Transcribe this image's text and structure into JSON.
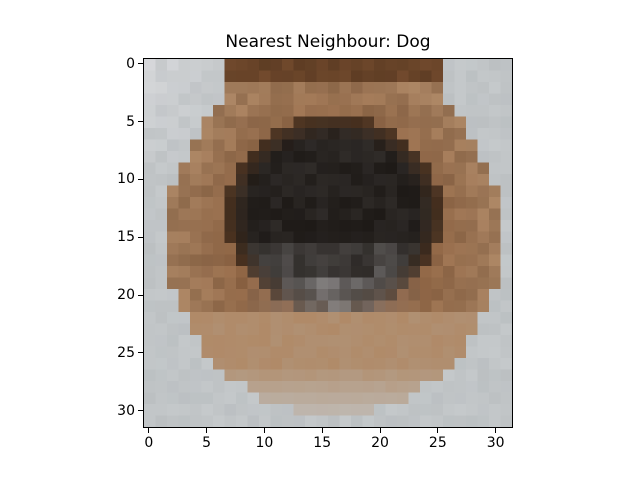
{
  "figure": {
    "title": "Nearest Neighbour: Dog",
    "image_grid": {
      "rows": 32,
      "cols": 32
    },
    "image_description_palette": {
      "background": "#c5c9cb",
      "fur_light": "#b08a68",
      "fur_mid": "#8a5a38",
      "fur_dark": "#5a3a22",
      "face_dark": "#1e1a17",
      "face_mid": "#3a3634",
      "muzzle_grey": "#8d8a8a"
    },
    "x_axis": {
      "ticks": [
        "0",
        "5",
        "10",
        "15",
        "20",
        "25",
        "30"
      ],
      "tick_values": [
        0,
        5,
        10,
        15,
        20,
        25,
        30
      ],
      "range": [
        -0.5,
        31.5
      ]
    },
    "y_axis": {
      "ticks": [
        "0",
        "5",
        "10",
        "15",
        "20",
        "25",
        "30"
      ],
      "tick_values": [
        0,
        5,
        10,
        15,
        20,
        25,
        30
      ],
      "range": [
        31.5,
        -0.5
      ]
    }
  }
}
